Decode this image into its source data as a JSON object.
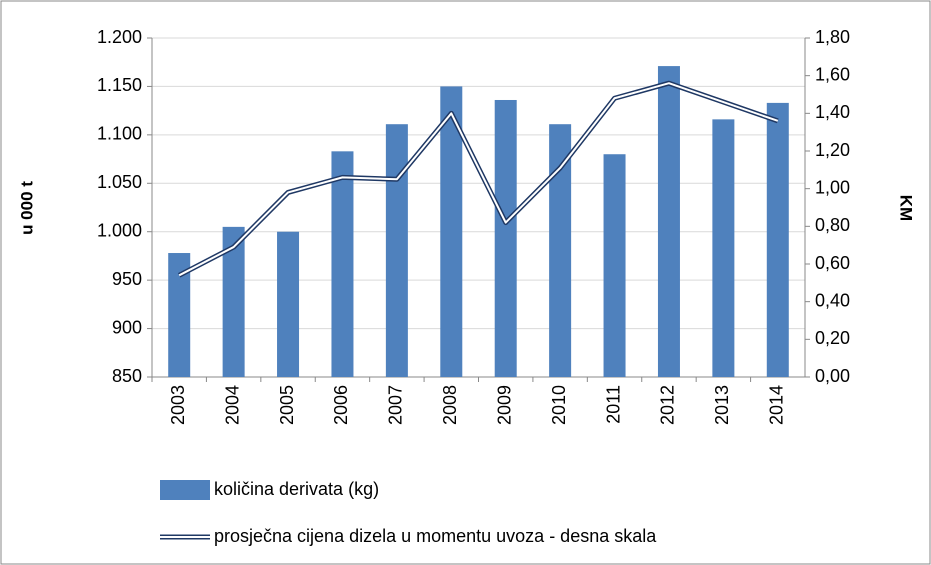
{
  "chart_data": {
    "type": "bar",
    "categories": [
      "2003",
      "2004",
      "2005",
      "2006",
      "2007",
      "2008",
      "2009",
      "2010",
      "2011",
      "2012",
      "2013",
      "2014"
    ],
    "series": [
      {
        "name": "količina derivata (kg)",
        "type": "bar",
        "color": "#4f81bd",
        "values": [
          978,
          1005,
          1000,
          1083,
          1111,
          1150,
          1136,
          1111,
          1080,
          1171,
          1116,
          1133
        ]
      },
      {
        "name": "prosječna cijena dizela u momentu uvoza - desna skala",
        "type": "line",
        "axis": "y2",
        "color": "#1f3864",
        "values": [
          0.54,
          0.69,
          0.98,
          1.06,
          1.05,
          1.4,
          0.82,
          1.11,
          1.48,
          1.56,
          1.46,
          1.36
        ]
      }
    ],
    "ylabel": "u 000 t",
    "y2label": "KM",
    "ylim": [
      850,
      1200
    ],
    "yticks": [
      850,
      900,
      950,
      {
        "value": 1000,
        "label": "1.000"
      },
      {
        "value": 1050,
        "label": "1.050"
      },
      {
        "value": 1100,
        "label": "1.100"
      },
      {
        "value": 1150,
        "label": "1.150"
      },
      {
        "value": 1200,
        "label": "1.200"
      }
    ],
    "y2lim": [
      0,
      1.8
    ],
    "y2ticks": [
      {
        "value": 0,
        "label": "0,00"
      },
      {
        "value": 0.2,
        "label": "0,20"
      },
      {
        "value": 0.4,
        "label": "0,40"
      },
      {
        "value": 0.6,
        "label": "0,60"
      },
      {
        "value": 0.8,
        "label": "0,80"
      },
      {
        "value": 1.0,
        "label": "1,00"
      },
      {
        "value": 1.2,
        "label": "1,20"
      },
      {
        "value": 1.4,
        "label": "1,40"
      },
      {
        "value": 1.6,
        "label": "1,60"
      },
      {
        "value": 1.8,
        "label": "1,80"
      }
    ],
    "grid": true,
    "legend": "bottom"
  }
}
